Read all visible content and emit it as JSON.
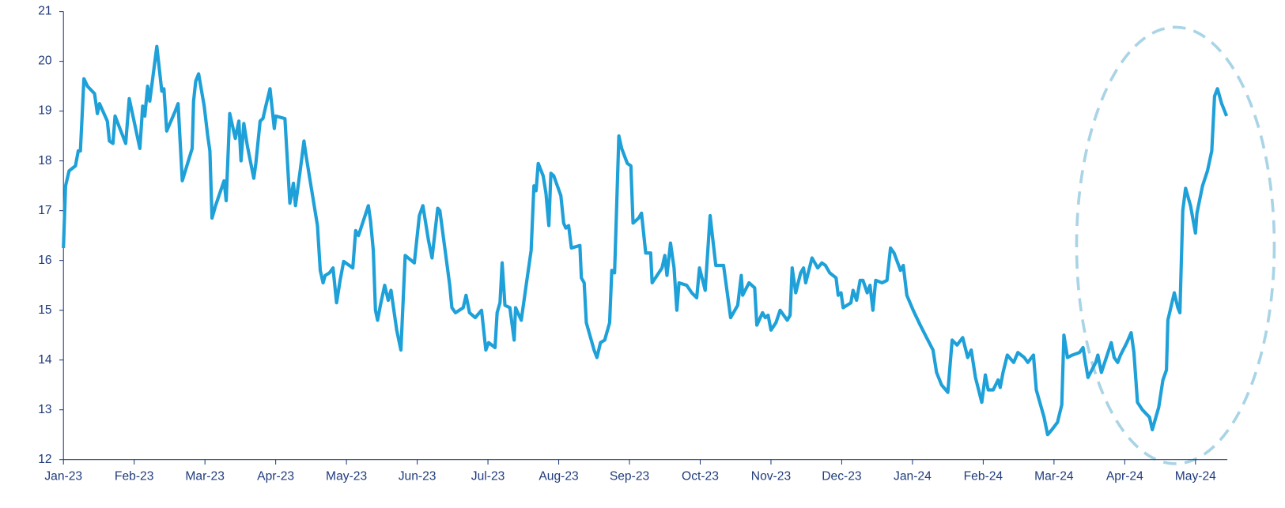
{
  "chart_data": {
    "type": "line",
    "color": "#1ea0d8",
    "xlim": [
      0,
      16.45
    ],
    "ylim": [
      12,
      21
    ],
    "yticks": [
      12,
      13,
      14,
      15,
      16,
      17,
      18,
      19,
      20,
      21
    ],
    "xticks": [
      {
        "value": 0,
        "label": "Jan-23"
      },
      {
        "value": 1,
        "label": "Feb-23"
      },
      {
        "value": 2,
        "label": "Mar-23"
      },
      {
        "value": 3,
        "label": "Apr-23"
      },
      {
        "value": 4,
        "label": "May-23"
      },
      {
        "value": 5,
        "label": "Jun-23"
      },
      {
        "value": 6,
        "label": "Jul-23"
      },
      {
        "value": 7,
        "label": "Aug-23"
      },
      {
        "value": 8,
        "label": "Sep-23"
      },
      {
        "value": 9,
        "label": "Oct-23"
      },
      {
        "value": 10,
        "label": "Nov-23"
      },
      {
        "value": 11,
        "label": "Dec-23"
      },
      {
        "value": 12,
        "label": "Jan-24"
      },
      {
        "value": 13,
        "label": "Feb-24"
      },
      {
        "value": 14,
        "label": "Mar-24"
      },
      {
        "value": 15,
        "label": "Apr-24"
      },
      {
        "value": 16,
        "label": "May-24"
      }
    ],
    "x": [
      0,
      0.03,
      0.08,
      0.17,
      0.21,
      0.24,
      0.29,
      0.34,
      0.44,
      0.48,
      0.51,
      0.62,
      0.65,
      0.7,
      0.73,
      0.88,
      0.93,
      1.08,
      1.12,
      1.15,
      1.19,
      1.22,
      1.32,
      1.39,
      1.42,
      1.46,
      1.58,
      1.62,
      1.68,
      1.82,
      1.84,
      1.87,
      1.91,
      1.99,
      2.04,
      2.07,
      2.1,
      2.15,
      2.27,
      2.3,
      2.35,
      2.43,
      2.48,
      2.51,
      2.55,
      2.6,
      2.69,
      2.72,
      2.78,
      2.82,
      2.86,
      2.92,
      2.98,
      3.0,
      3.13,
      3.2,
      3.25,
      3.28,
      3.35,
      3.4,
      3.43,
      3.59,
      3.63,
      3.67,
      3.7,
      3.76,
      3.81,
      3.86,
      3.91,
      3.96,
      4.09,
      4.13,
      4.17,
      4.31,
      4.34,
      4.38,
      4.41,
      4.44,
      4.48,
      4.54,
      4.59,
      4.63,
      4.71,
      4.77,
      4.83,
      4.96,
      5.03,
      5.08,
      5.16,
      5.21,
      5.29,
      5.32,
      5.46,
      5.49,
      5.54,
      5.65,
      5.69,
      5.74,
      5.82,
      5.91,
      5.97,
      6.01,
      6.1,
      6.13,
      6.17,
      6.2,
      6.24,
      6.31,
      6.37,
      6.39,
      6.47,
      6.55,
      6.61,
      6.65,
      6.68,
      6.71,
      6.78,
      6.82,
      6.86,
      6.89,
      6.93,
      7.03,
      7.07,
      7.1,
      7.14,
      7.18,
      7.3,
      7.32,
      7.36,
      7.39,
      7.5,
      7.54,
      7.59,
      7.65,
      7.72,
      7.75,
      7.79,
      7.85,
      7.89,
      7.97,
      8.02,
      8.05,
      8.13,
      8.17,
      8.23,
      8.3,
      8.32,
      8.39,
      8.46,
      8.5,
      8.53,
      8.58,
      8.63,
      8.67,
      8.7,
      8.81,
      8.88,
      8.95,
      8.99,
      9.07,
      9.14,
      9.18,
      9.22,
      9.33,
      9.43,
      9.53,
      9.58,
      9.6,
      9.69,
      9.77,
      9.8,
      9.88,
      9.92,
      9.96,
      10.0,
      10.07,
      10.13,
      10.23,
      10.27,
      10.3,
      10.35,
      10.42,
      10.46,
      10.49,
      10.58,
      10.66,
      10.72,
      10.77,
      10.83,
      10.92,
      10.95,
      10.99,
      11.02,
      11.13,
      11.16,
      11.21,
      11.26,
      11.3,
      11.36,
      11.4,
      11.44,
      11.48,
      11.57,
      11.64,
      11.69,
      11.74,
      11.83,
      11.87,
      11.92,
      12.01,
      12.11,
      12.2,
      12.29,
      12.34,
      12.41,
      12.5,
      12.56,
      12.63,
      12.71,
      12.78,
      12.83,
      12.89,
      12.98,
      13.03,
      13.07,
      13.14,
      13.21,
      13.24,
      13.28,
      13.34,
      13.43,
      13.49,
      13.58,
      13.63,
      13.71,
      13.75,
      13.79,
      13.86,
      13.91,
      13.97,
      14.05,
      14.11,
      14.14,
      14.19,
      14.26,
      14.36,
      14.41,
      14.48,
      14.59,
      14.62,
      14.67,
      14.81,
      14.85,
      14.9,
      14.94,
      15.03,
      15.09,
      15.13,
      15.18,
      15.25,
      15.35,
      15.39,
      15.48,
      15.54,
      15.59,
      15.61,
      15.7,
      15.75,
      15.78,
      15.82,
      15.86,
      15.93,
      16.0,
      16.02,
      16.1,
      16.17,
      16.23,
      16.27,
      16.31,
      16.37,
      16.44
    ],
    "values": [
      16.25,
      17.5,
      17.8,
      17.9,
      18.2,
      18.2,
      19.65,
      19.5,
      19.35,
      18.95,
      19.15,
      18.8,
      18.4,
      18.35,
      18.9,
      18.35,
      19.25,
      18.25,
      19.1,
      18.9,
      19.5,
      19.2,
      20.3,
      19.4,
      19.45,
      18.6,
      19.0,
      19.15,
      17.6,
      18.25,
      19.2,
      19.6,
      19.75,
      19.1,
      18.5,
      18.2,
      16.85,
      17.1,
      17.6,
      17.2,
      18.95,
      18.45,
      18.8,
      18.0,
      18.75,
      18.3,
      17.65,
      17.95,
      18.8,
      18.85,
      19.1,
      19.45,
      18.65,
      18.9,
      18.85,
      17.15,
      17.55,
      17.1,
      17.85,
      18.4,
      18.1,
      16.7,
      15.8,
      15.55,
      15.7,
      15.75,
      15.85,
      15.15,
      15.6,
      15.98,
      15.85,
      16.6,
      16.5,
      17.1,
      16.8,
      16.2,
      15.0,
      14.8,
      15.1,
      15.5,
      15.2,
      15.4,
      14.6,
      14.2,
      16.1,
      15.95,
      16.9,
      17.1,
      16.4,
      16.05,
      17.05,
      17.0,
      15.5,
      15.05,
      14.95,
      15.05,
      15.3,
      14.95,
      14.85,
      15.0,
      14.2,
      14.35,
      14.25,
      14.95,
      15.15,
      15.95,
      15.1,
      15.05,
      14.4,
      15.05,
      14.8,
      15.6,
      16.2,
      17.5,
      17.4,
      17.95,
      17.7,
      17.35,
      16.7,
      17.75,
      17.7,
      17.3,
      16.75,
      16.65,
      16.7,
      16.25,
      16.3,
      15.65,
      15.55,
      14.75,
      14.2,
      14.05,
      14.35,
      14.4,
      14.75,
      15.8,
      15.75,
      18.5,
      18.25,
      17.95,
      17.9,
      16.75,
      16.85,
      16.95,
      16.15,
      16.15,
      15.55,
      15.7,
      15.85,
      16.1,
      15.7,
      16.35,
      15.85,
      15.0,
      15.55,
      15.5,
      15.35,
      15.25,
      15.85,
      15.4,
      16.9,
      16.4,
      15.9,
      15.9,
      14.85,
      15.1,
      15.7,
      15.3,
      15.55,
      15.45,
      14.7,
      14.95,
      14.85,
      14.9,
      14.6,
      14.75,
      15.0,
      14.8,
      14.9,
      15.85,
      15.35,
      15.75,
      15.85,
      15.55,
      16.05,
      15.85,
      15.95,
      15.9,
      15.75,
      15.65,
      15.3,
      15.35,
      15.05,
      15.15,
      15.4,
      15.2,
      15.6,
      15.6,
      15.35,
      15.5,
      15.0,
      15.6,
      15.55,
      15.6,
      16.25,
      16.15,
      15.8,
      15.9,
      15.3,
      15.0,
      14.7,
      14.45,
      14.2,
      13.75,
      13.5,
      13.35,
      14.4,
      14.3,
      14.45,
      14.05,
      14.2,
      13.65,
      13.15,
      13.7,
      13.4,
      13.4,
      13.6,
      13.45,
      13.75,
      14.1,
      13.95,
      14.15,
      14.05,
      13.95,
      14.1,
      13.4,
      13.2,
      12.85,
      12.5,
      12.6,
      12.75,
      13.1,
      14.5,
      14.05,
      14.1,
      14.15,
      14.25,
      13.65,
      13.95,
      14.1,
      13.75,
      14.35,
      14.05,
      13.95,
      14.1,
      14.35,
      14.55,
      14.15,
      13.15,
      13.0,
      12.85,
      12.6,
      13.05,
      13.6,
      13.8,
      14.8,
      15.35,
      15.05,
      14.95,
      17.0,
      17.45,
      17.1,
      16.55,
      16.95,
      17.5,
      17.8,
      18.2,
      19.3,
      19.45,
      19.15,
      18.9
    ]
  }
}
